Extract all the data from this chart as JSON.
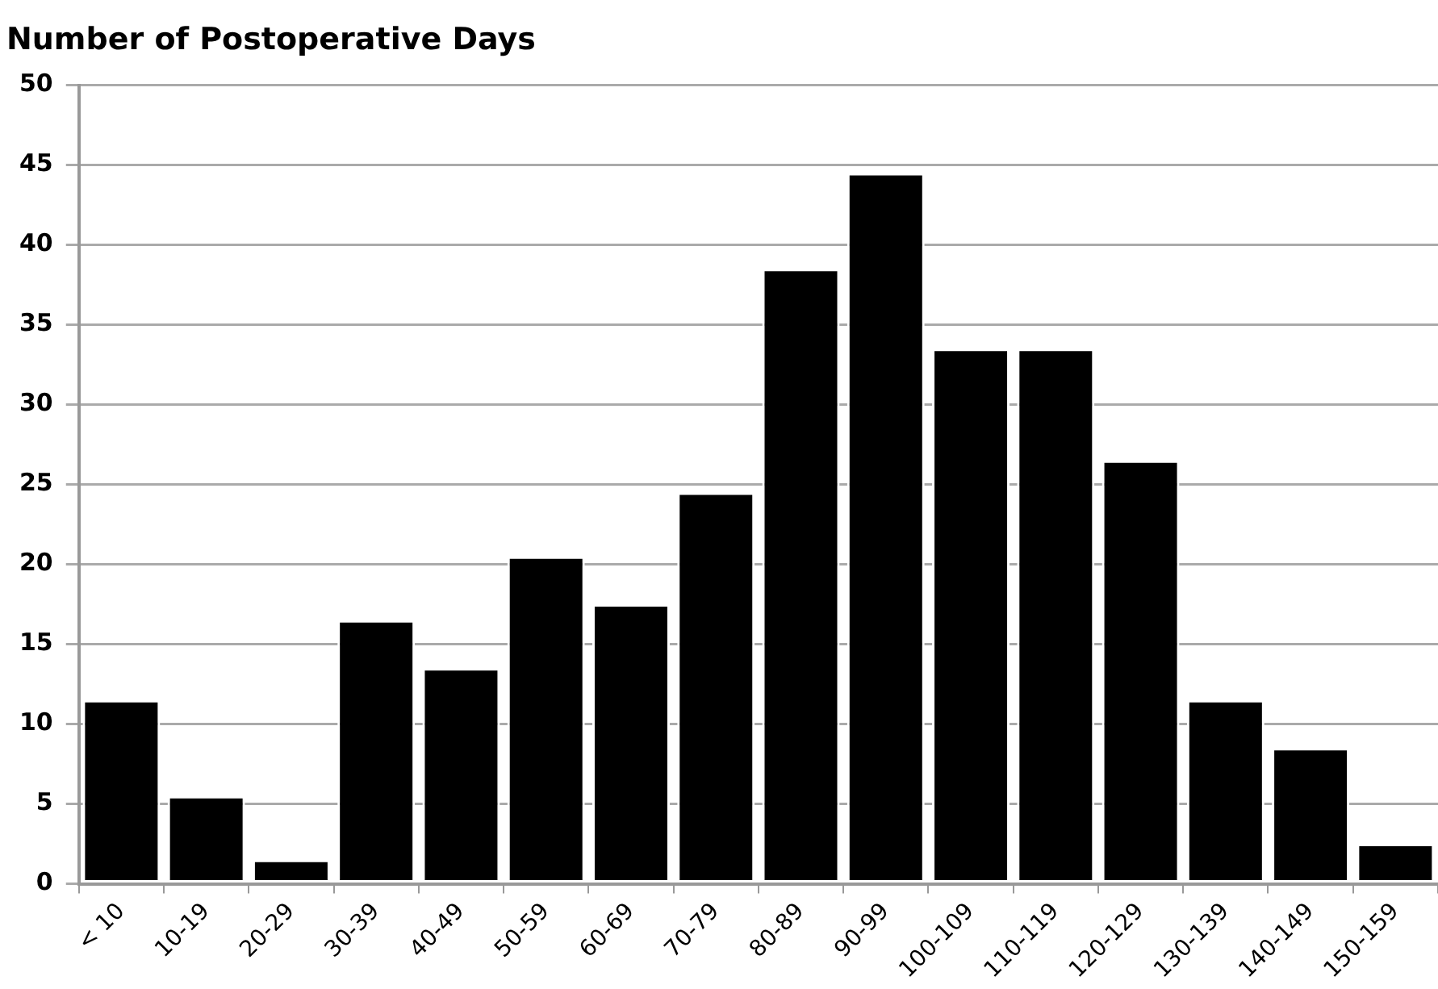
{
  "chart_data": {
    "type": "bar",
    "title": "Number of Postoperative Days",
    "categories": [
      "< 10",
      "10-19",
      "20-29",
      "30-39",
      "40-49",
      "50-59",
      "60-69",
      "70-79",
      "80-89",
      "90-99",
      "100-109",
      "110-119",
      "120-129",
      "130-139",
      "140-149",
      "150-159"
    ],
    "values": [
      11.5,
      5.5,
      1.5,
      16.5,
      13.5,
      20.5,
      17.5,
      24.5,
      38.5,
      44.5,
      33.5,
      33.5,
      26.5,
      11.5,
      8.5,
      2.5
    ],
    "color": "#000000",
    "ylim": [
      0,
      50
    ],
    "yticks": [
      0,
      5,
      10,
      15,
      20,
      25,
      30,
      35,
      40,
      45,
      50
    ],
    "grid": "y",
    "legend": false
  }
}
